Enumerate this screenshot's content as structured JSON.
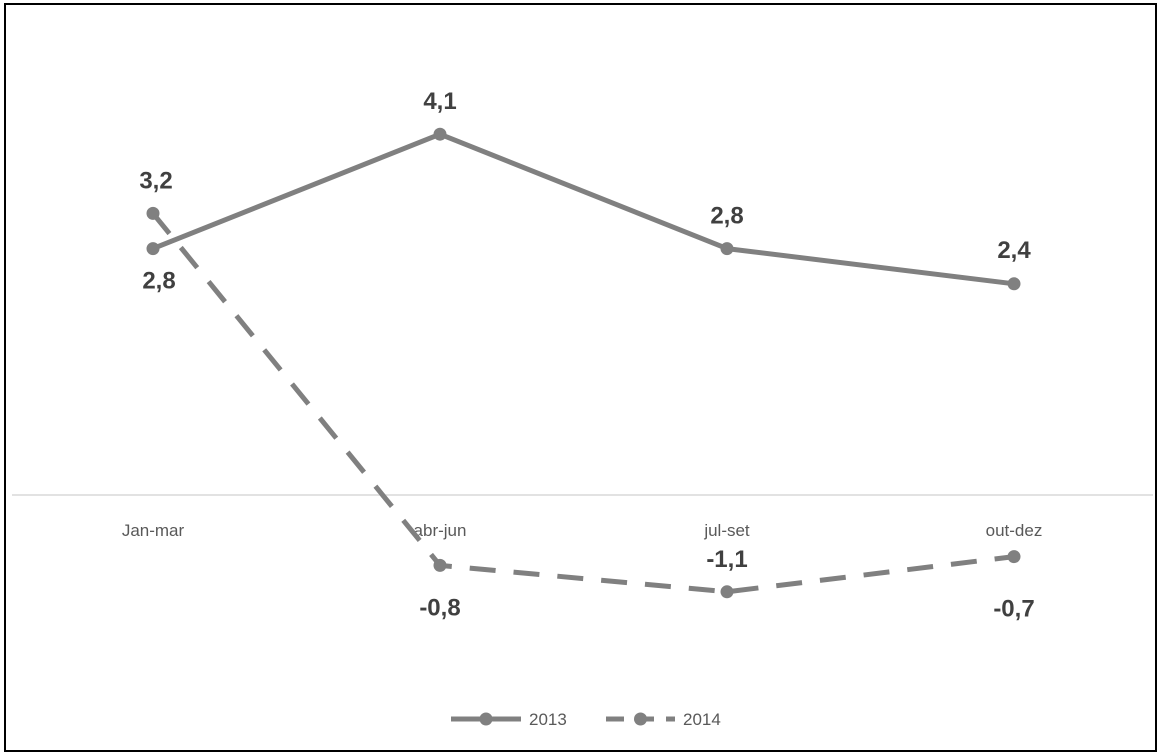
{
  "chart_data": {
    "type": "line",
    "categories": [
      "Jan-mar",
      "abr-jun",
      "jul-set",
      "out-dez"
    ],
    "series": [
      {
        "name": "2013",
        "values": [
          2.8,
          4.1,
          2.8,
          2.4
        ],
        "labels": [
          "2,8",
          "4,1",
          "2,8",
          "2,4"
        ],
        "line_style": "solid",
        "color": "#808080"
      },
      {
        "name": "2014",
        "values": [
          3.2,
          -0.8,
          -1.1,
          -0.7
        ],
        "labels": [
          "3,2",
          "-0,8",
          "-1,1",
          "-0,7"
        ],
        "line_style": "dashed",
        "color": "#808080"
      }
    ],
    "title": "",
    "xlabel": "",
    "ylabel": "",
    "ylim": [
      -1.5,
      5.5
    ],
    "grid": false,
    "legend_position": "bottom",
    "zero_line_color": "#d9d9d9"
  }
}
